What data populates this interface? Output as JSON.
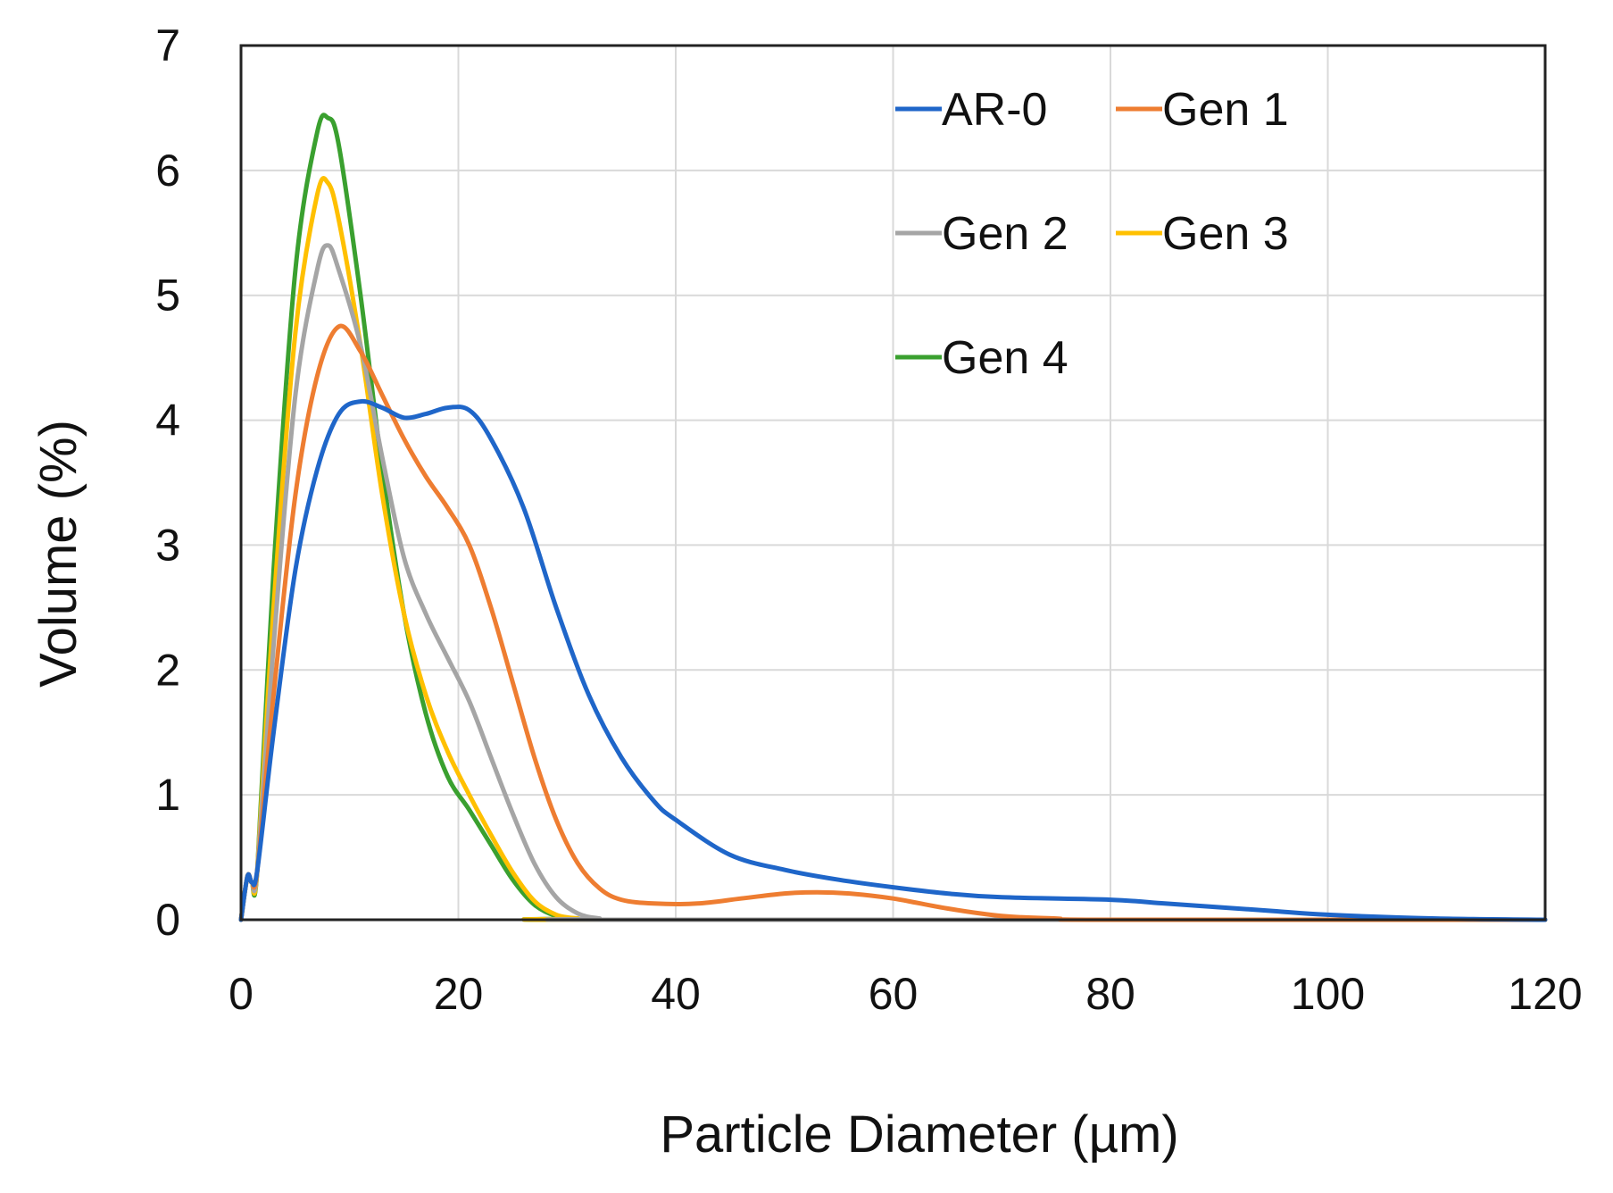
{
  "chart_data": {
    "type": "line",
    "title": "",
    "xlabel": "Particle Diameter (µm)",
    "ylabel": "Volume (%)",
    "xlim": [
      0,
      120
    ],
    "ylim": [
      0,
      7
    ],
    "xticks": [
      0,
      20,
      40,
      60,
      80,
      100,
      120
    ],
    "yticks": [
      0,
      1,
      2,
      3,
      4,
      5,
      6,
      7
    ],
    "grid": true,
    "legend": {
      "position": "top-right",
      "columns": 2
    },
    "series": [
      {
        "name": "AR-0",
        "color": "#1f66c9",
        "points": [
          [
            0,
            0
          ],
          [
            0.6,
            0.35
          ],
          [
            1,
            0.3
          ],
          [
            1.5,
            0.4
          ],
          [
            3,
            1.5
          ],
          [
            5,
            2.8
          ],
          [
            7,
            3.6
          ],
          [
            9,
            4.05
          ],
          [
            11,
            4.15
          ],
          [
            13,
            4.1
          ],
          [
            15,
            4.02
          ],
          [
            17,
            4.05
          ],
          [
            19,
            4.1
          ],
          [
            21,
            4.08
          ],
          [
            23,
            3.85
          ],
          [
            26,
            3.3
          ],
          [
            29,
            2.5
          ],
          [
            32,
            1.8
          ],
          [
            35,
            1.3
          ],
          [
            38,
            0.95
          ],
          [
            40,
            0.8
          ],
          [
            45,
            0.52
          ],
          [
            50,
            0.4
          ],
          [
            55,
            0.32
          ],
          [
            60,
            0.26
          ],
          [
            65,
            0.21
          ],
          [
            70,
            0.18
          ],
          [
            80,
            0.16
          ],
          [
            85,
            0.13
          ],
          [
            90,
            0.1
          ],
          [
            95,
            0.07
          ],
          [
            100,
            0.04
          ],
          [
            110,
            0.01
          ],
          [
            120,
            0
          ]
        ]
      },
      {
        "name": "Gen 1",
        "color": "#ee7d31",
        "points": [
          [
            0,
            0
          ],
          [
            0.6,
            0.35
          ],
          [
            1,
            0.3
          ],
          [
            1.5,
            0.4
          ],
          [
            3,
            1.8
          ],
          [
            5,
            3.4
          ],
          [
            7,
            4.35
          ],
          [
            9,
            4.75
          ],
          [
            11,
            4.55
          ],
          [
            13,
            4.2
          ],
          [
            15,
            3.85
          ],
          [
            17,
            3.55
          ],
          [
            19,
            3.3
          ],
          [
            21,
            3.0
          ],
          [
            23,
            2.5
          ],
          [
            25,
            1.9
          ],
          [
            27,
            1.3
          ],
          [
            29,
            0.8
          ],
          [
            31,
            0.45
          ],
          [
            33,
            0.25
          ],
          [
            35,
            0.16
          ],
          [
            38,
            0.13
          ],
          [
            42,
            0.13
          ],
          [
            46,
            0.17
          ],
          [
            50,
            0.21
          ],
          [
            53,
            0.22
          ],
          [
            56,
            0.21
          ],
          [
            60,
            0.17
          ],
          [
            65,
            0.09
          ],
          [
            70,
            0.03
          ],
          [
            75,
            0.01
          ],
          [
            80,
            0
          ],
          [
            120,
            0
          ]
        ]
      },
      {
        "name": "Gen 2",
        "color": "#a5a5a5",
        "points": [
          [
            0,
            0
          ],
          [
            0.6,
            0.35
          ],
          [
            1,
            0.3
          ],
          [
            1.5,
            0.4
          ],
          [
            3,
            2.2
          ],
          [
            5,
            4.2
          ],
          [
            7,
            5.2
          ],
          [
            8,
            5.4
          ],
          [
            9,
            5.2
          ],
          [
            11,
            4.6
          ],
          [
            13,
            3.7
          ],
          [
            15,
            2.9
          ],
          [
            17,
            2.45
          ],
          [
            19,
            2.1
          ],
          [
            21,
            1.75
          ],
          [
            23,
            1.3
          ],
          [
            25,
            0.85
          ],
          [
            27,
            0.45
          ],
          [
            29,
            0.18
          ],
          [
            31,
            0.05
          ],
          [
            33,
            0.01
          ],
          [
            35,
            0
          ],
          [
            120,
            0
          ]
        ]
      },
      {
        "name": "Gen 3",
        "color": "#ffc000",
        "points": [
          [
            0,
            0
          ],
          [
            0.6,
            0.35
          ],
          [
            1,
            0.3
          ],
          [
            1.5,
            0.4
          ],
          [
            3,
            2.5
          ],
          [
            5,
            4.7
          ],
          [
            7,
            5.8
          ],
          [
            8,
            5.9
          ],
          [
            9,
            5.6
          ],
          [
            11,
            4.6
          ],
          [
            13,
            3.4
          ],
          [
            15,
            2.45
          ],
          [
            17,
            1.8
          ],
          [
            19,
            1.35
          ],
          [
            21,
            1.0
          ],
          [
            23,
            0.68
          ],
          [
            25,
            0.38
          ],
          [
            27,
            0.15
          ],
          [
            29,
            0.04
          ],
          [
            31,
            0.01
          ],
          [
            33,
            0
          ],
          [
            120,
            0
          ]
        ]
      },
      {
        "name": "Gen 4",
        "color": "#3aa02f",
        "points": [
          [
            0,
            0
          ],
          [
            0.6,
            0.35
          ],
          [
            1,
            0.3
          ],
          [
            1.5,
            0.4
          ],
          [
            3,
            2.8
          ],
          [
            5,
            5.2
          ],
          [
            7,
            6.3
          ],
          [
            8,
            6.42
          ],
          [
            9,
            6.2
          ],
          [
            11,
            5.0
          ],
          [
            13,
            3.6
          ],
          [
            15,
            2.45
          ],
          [
            17,
            1.65
          ],
          [
            19,
            1.15
          ],
          [
            21,
            0.88
          ],
          [
            23,
            0.6
          ],
          [
            25,
            0.32
          ],
          [
            27,
            0.12
          ],
          [
            29,
            0.03
          ],
          [
            31,
            0.01
          ],
          [
            33,
            0
          ],
          [
            120,
            0
          ]
        ]
      }
    ]
  }
}
